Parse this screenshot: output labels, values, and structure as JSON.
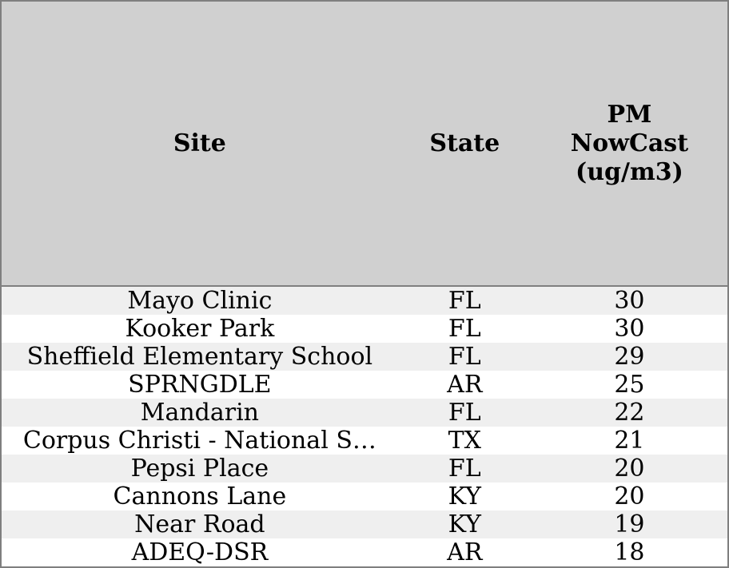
{
  "chart_data": {
    "type": "table",
    "columns": [
      {
        "id": "site",
        "label": "Site"
      },
      {
        "id": "state",
        "label": "State"
      },
      {
        "id": "pm_nowcast",
        "label": "PM\nNowCast\n(ug/m3)"
      }
    ],
    "rows": [
      {
        "site": "Mayo Clinic",
        "state": "FL",
        "pm_nowcast": "30"
      },
      {
        "site": "Kooker Park",
        "state": "FL",
        "pm_nowcast": "30"
      },
      {
        "site": "Sheffield Elementary School",
        "state": "FL",
        "pm_nowcast": "29"
      },
      {
        "site": "SPRNGDLE",
        "state": "AR",
        "pm_nowcast": "25"
      },
      {
        "site": "Mandarin",
        "state": "FL",
        "pm_nowcast": "22"
      },
      {
        "site": "Corpus Christi - National S…",
        "state": "TX",
        "pm_nowcast": "21"
      },
      {
        "site": "Pepsi Place",
        "state": "FL",
        "pm_nowcast": "20"
      },
      {
        "site": "Cannons Lane",
        "state": "KY",
        "pm_nowcast": "20"
      },
      {
        "site": "Near Road",
        "state": "KY",
        "pm_nowcast": "19"
      },
      {
        "site": "ADEQ-DSR",
        "state": "AR",
        "pm_nowcast": "18"
      }
    ]
  },
  "colors": {
    "header_bg": "#d0d0d0",
    "border": "#7f7f7f",
    "row_even_bg": "#efefef",
    "row_odd_bg": "#ffffff",
    "text": "#000000"
  }
}
